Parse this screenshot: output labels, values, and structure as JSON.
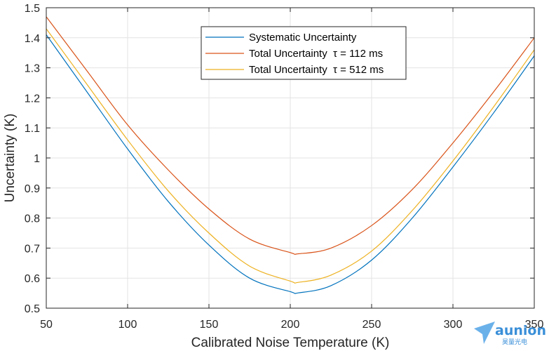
{
  "chart_data": {
    "type": "line",
    "xlabel": "Calibrated Noise Temperature (K)",
    "ylabel": "Uncertainty (K)",
    "xlim": [
      50,
      350
    ],
    "ylim": [
      0.5,
      1.5
    ],
    "xticks": [
      "50",
      "100",
      "150",
      "200",
      "250",
      "300",
      "350"
    ],
    "yticks": [
      "0.5",
      "0.6",
      "0.7",
      "0.8",
      "0.9",
      "1",
      "1.1",
      "1.2",
      "1.3",
      "1.4",
      "1.5"
    ],
    "grid": true,
    "legend_position": "top-center",
    "x": [
      50,
      75,
      100,
      125,
      150,
      175,
      200,
      205,
      225,
      250,
      275,
      300,
      325,
      350
    ],
    "series": [
      {
        "name": "Systematic Uncertainty",
        "color": "#0072BD",
        "values": [
          1.41,
          1.22,
          1.03,
          0.855,
          0.71,
          0.6,
          0.555,
          0.551,
          0.575,
          0.66,
          0.8,
          0.97,
          1.15,
          1.34
        ]
      },
      {
        "name": "Total Uncertainty  τ = 112 ms",
        "color": "#D95319",
        "values": [
          1.47,
          1.29,
          1.11,
          0.96,
          0.83,
          0.73,
          0.685,
          0.681,
          0.7,
          0.775,
          0.895,
          1.05,
          1.22,
          1.4
        ]
      },
      {
        "name": "Total Uncertainty  τ = 512 ms",
        "color": "#EDB120",
        "values": [
          1.43,
          1.245,
          1.06,
          0.89,
          0.75,
          0.64,
          0.59,
          0.586,
          0.61,
          0.69,
          0.825,
          0.99,
          1.17,
          1.36
        ]
      }
    ]
  },
  "watermark": {
    "brand": "aunion",
    "sub": "昊量光电",
    "color": "#3a8fd8"
  }
}
